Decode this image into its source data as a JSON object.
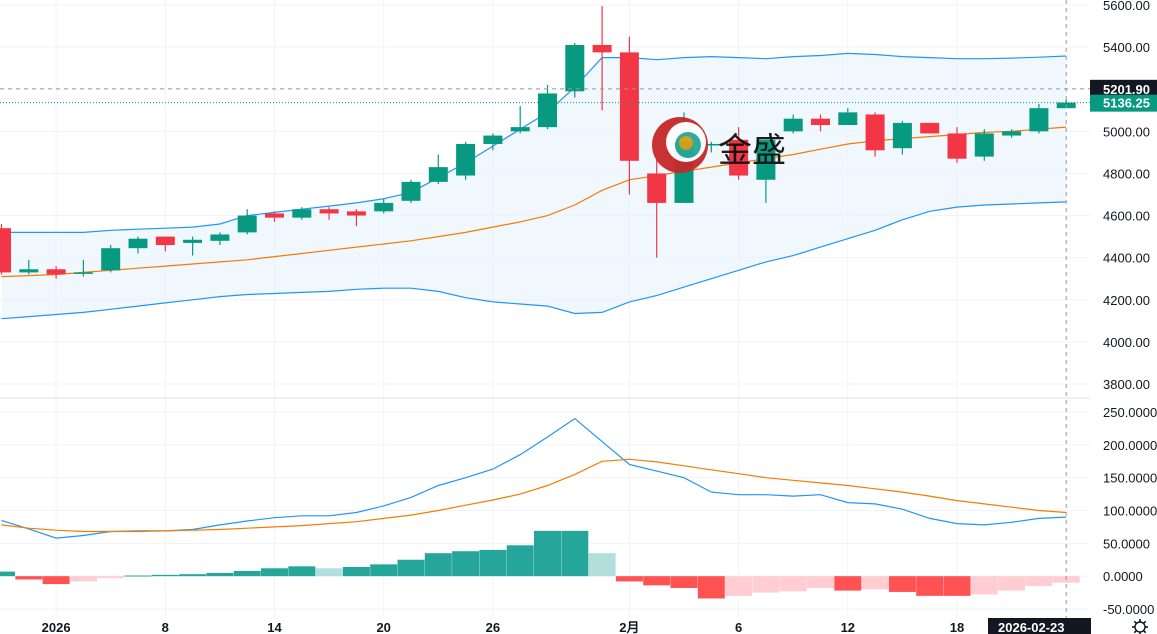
{
  "colors": {
    "up": "#089981",
    "down": "#f23645",
    "bb_upper_lower": "#2196f3",
    "bb_middle": "#f57c00",
    "bb_fill": "#e3f2fd",
    "macd_line": "#2196f3",
    "signal_line": "#f57c00",
    "hist_up_strong": "#26a69a",
    "hist_up_weak": "#b2dfdb",
    "hist_down_strong": "#ff5252",
    "hist_down_weak": "#ffcdd2",
    "crosshair": "#9598a1",
    "last_price_bg": "#089981",
    "label_bg": "#131722"
  },
  "watermark": {
    "text": "金盛",
    "icon": "jinsheng-logo-icon"
  },
  "settings_icon": "gear-icon",
  "chart_data": [
    {
      "type": "candlestick",
      "panel": "price",
      "overlays": [
        "bollinger_bands"
      ],
      "ylim": [
        3740,
        5600
      ],
      "y_ticks": [
        "5600.00",
        "5400.00",
        "5200.00",
        "5000.00",
        "4800.00",
        "4600.00",
        "4400.00",
        "4200.00",
        "4000.00",
        "3800.00"
      ],
      "crosshair_price_label": "5201.90",
      "last_price_label": "5136.25",
      "candles": [
        {
          "o": 4540,
          "h": 4560,
          "l": 4320,
          "c": 4330
        },
        {
          "o": 4330,
          "h": 4390,
          "l": 4320,
          "c": 4345
        },
        {
          "o": 4345,
          "h": 4360,
          "l": 4300,
          "c": 4320
        },
        {
          "o": 4325,
          "h": 4390,
          "l": 4310,
          "c": 4330
        },
        {
          "o": 4340,
          "h": 4460,
          "l": 4330,
          "c": 4445
        },
        {
          "o": 4445,
          "h": 4500,
          "l": 4420,
          "c": 4490
        },
        {
          "o": 4500,
          "h": 4500,
          "l": 4430,
          "c": 4460
        },
        {
          "o": 4470,
          "h": 4500,
          "l": 4410,
          "c": 4485
        },
        {
          "o": 4480,
          "h": 4520,
          "l": 4460,
          "c": 4510
        },
        {
          "o": 4520,
          "h": 4630,
          "l": 4510,
          "c": 4600
        },
        {
          "o": 4610,
          "h": 4620,
          "l": 4570,
          "c": 4590
        },
        {
          "o": 4590,
          "h": 4640,
          "l": 4580,
          "c": 4630
        },
        {
          "o": 4630,
          "h": 4640,
          "l": 4580,
          "c": 4610
        },
        {
          "o": 4620,
          "h": 4630,
          "l": 4550,
          "c": 4600
        },
        {
          "o": 4620,
          "h": 4680,
          "l": 4610,
          "c": 4660
        },
        {
          "o": 4670,
          "h": 4770,
          "l": 4660,
          "c": 4760
        },
        {
          "o": 4760,
          "h": 4890,
          "l": 4750,
          "c": 4830
        },
        {
          "o": 4790,
          "h": 4950,
          "l": 4770,
          "c": 4940
        },
        {
          "o": 4940,
          "h": 4990,
          "l": 4910,
          "c": 4980
        },
        {
          "o": 5000,
          "h": 5120,
          "l": 4990,
          "c": 5020
        },
        {
          "o": 5020,
          "h": 5220,
          "l": 5010,
          "c": 5180
        },
        {
          "o": 5190,
          "h": 5420,
          "l": 5160,
          "c": 5410
        },
        {
          "o": 5410,
          "h": 5595,
          "l": 5100,
          "c": 5375
        },
        {
          "o": 5375,
          "h": 5450,
          "l": 4700,
          "c": 4860
        },
        {
          "o": 4800,
          "h": 4870,
          "l": 4400,
          "c": 4660
        },
        {
          "o": 4660,
          "h": 5090,
          "l": 4660,
          "c": 4950
        },
        {
          "o": 4940,
          "h": 4950,
          "l": 4900,
          "c": 4940
        },
        {
          "o": 4960,
          "h": 5020,
          "l": 4770,
          "c": 4790
        },
        {
          "o": 4770,
          "h": 4960,
          "l": 4660,
          "c": 4960
        },
        {
          "o": 5000,
          "h": 5080,
          "l": 4990,
          "c": 5060
        },
        {
          "o": 5060,
          "h": 5080,
          "l": 5000,
          "c": 5030
        },
        {
          "o": 5030,
          "h": 5110,
          "l": 5030,
          "c": 5090
        },
        {
          "o": 5080,
          "h": 5090,
          "l": 4880,
          "c": 4910
        },
        {
          "o": 4920,
          "h": 5050,
          "l": 4890,
          "c": 5040
        },
        {
          "o": 5040,
          "h": 5040,
          "l": 4990,
          "c": 4990
        },
        {
          "o": 4990,
          "h": 5020,
          "l": 4850,
          "c": 4870
        },
        {
          "o": 4880,
          "h": 5010,
          "l": 4860,
          "c": 4990
        },
        {
          "o": 4980,
          "h": 5010,
          "l": 4970,
          "c": 5000
        },
        {
          "o": 5000,
          "h": 5130,
          "l": 4990,
          "c": 5110
        },
        {
          "o": 5110,
          "h": 5150,
          "l": 5110,
          "c": 5136.25
        }
      ],
      "bollinger": {
        "upper": [
          4520,
          4520,
          4520,
          4520,
          4530,
          4535,
          4540,
          4545,
          4560,
          4600,
          4615,
          4630,
          4645,
          4660,
          4680,
          4710,
          4780,
          4850,
          4930,
          5010,
          5090,
          5210,
          5350,
          5350,
          5340,
          5350,
          5355,
          5350,
          5345,
          5355,
          5360,
          5370,
          5365,
          5355,
          5350,
          5345,
          5345,
          5348,
          5352,
          5358
        ],
        "middle": [
          4310,
          4315,
          4320,
          4330,
          4340,
          4350,
          4360,
          4370,
          4380,
          4390,
          4405,
          4420,
          4435,
          4450,
          4465,
          4480,
          4500,
          4520,
          4545,
          4570,
          4600,
          4650,
          4720,
          4770,
          4790,
          4810,
          4830,
          4850,
          4870,
          4890,
          4915,
          4940,
          4955,
          4965,
          4975,
          4985,
          4995,
          5000,
          5010,
          5020
        ],
        "lower": [
          4110,
          4120,
          4130,
          4140,
          4155,
          4170,
          4185,
          4200,
          4215,
          4225,
          4230,
          4235,
          4240,
          4250,
          4255,
          4255,
          4240,
          4210,
          4190,
          4180,
          4170,
          4135,
          4140,
          4190,
          4220,
          4260,
          4300,
          4340,
          4380,
          4410,
          4450,
          4490,
          4530,
          4580,
          4620,
          4640,
          4650,
          4655,
          4660,
          4665
        ]
      }
    },
    {
      "type": "macd",
      "panel": "indicator",
      "ylim": [
        -70,
        265
      ],
      "y_ticks": [
        "250.0000",
        "200.0000",
        "150.0000",
        "100.0000",
        "50.0000",
        "0.0000",
        "-50.0000"
      ],
      "macd": [
        85,
        72,
        58,
        62,
        68,
        69,
        69,
        71,
        78,
        84,
        89,
        92,
        92,
        97,
        107,
        120,
        138,
        150,
        163,
        185,
        212,
        240,
        205,
        170,
        160,
        150,
        128,
        124,
        124,
        122,
        124,
        112,
        110,
        102,
        88,
        80,
        78,
        82,
        88,
        90
      ],
      "signal": [
        78,
        73,
        70,
        68,
        68,
        68,
        69,
        70,
        71,
        73,
        75,
        77,
        80,
        83,
        88,
        93,
        100,
        108,
        116,
        125,
        138,
        155,
        175,
        178,
        174,
        168,
        162,
        156,
        150,
        146,
        142,
        138,
        133,
        128,
        122,
        115,
        110,
        105,
        100,
        97
      ],
      "histogram": [
        7,
        -5,
        -12,
        -8,
        -3,
        1,
        2,
        3,
        5,
        8,
        12,
        15,
        12,
        14,
        18,
        25,
        35,
        38,
        40,
        47,
        69,
        69,
        35,
        -8,
        -14,
        -18,
        -34,
        -30,
        -25,
        -23,
        -18,
        -22,
        -20,
        -24,
        -30,
        -30,
        -28,
        -22,
        -15,
        -10
      ]
    }
  ],
  "x_axis": {
    "labels": [
      {
        "index": 2,
        "text": "2026"
      },
      {
        "index": 6,
        "text": "8"
      },
      {
        "index": 10,
        "text": "14"
      },
      {
        "index": 14,
        "text": "20"
      },
      {
        "index": 18,
        "text": "26"
      },
      {
        "index": 23,
        "text": "2月"
      },
      {
        "index": 27,
        "text": "6"
      },
      {
        "index": 31,
        "text": "12"
      },
      {
        "index": 35,
        "text": "18"
      }
    ],
    "crosshair_date_label": "2026-02-23",
    "crosshair_index": 39
  }
}
